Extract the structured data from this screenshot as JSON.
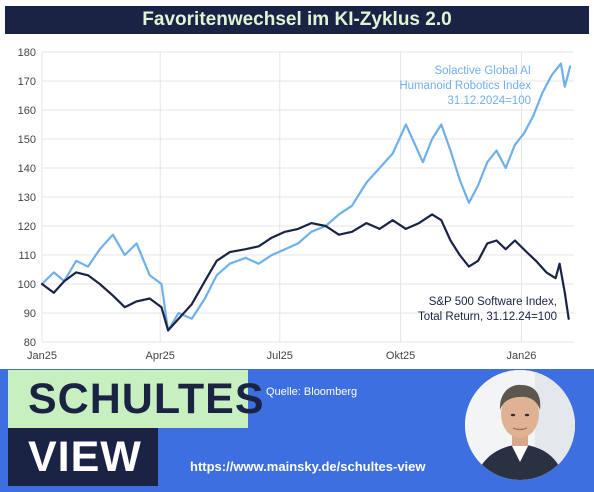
{
  "header": {
    "title": "Favoritenwechsel im KI-Zyklus 2.0"
  },
  "footer": {
    "logo_top": "SCHULTES",
    "logo_bottom": "VIEW",
    "source": "Quelle: Bloomberg",
    "url": "https://www.mainsky.de/schultes-view"
  },
  "colors": {
    "dark": "#1a2344",
    "light": "#6fb0ea",
    "accent": "#c8efc0",
    "footer_blue": "#3d6fe0"
  },
  "chart_data": {
    "type": "line",
    "title": "Favoritenwechsel im KI-Zyklus 2.0",
    "ylim": [
      80,
      180
    ],
    "yticks": [
      80,
      90,
      100,
      110,
      120,
      130,
      140,
      150,
      160,
      170,
      180
    ],
    "xticks": [
      {
        "date": "2025-01-01",
        "label": "Jan25"
      },
      {
        "date": "2025-04-01",
        "label": "Apr25"
      },
      {
        "date": "2025-07-01",
        "label": "Jul25"
      },
      {
        "date": "2025-10-01",
        "label": "Okt25"
      },
      {
        "date": "2026-01-01",
        "label": "Jan26"
      }
    ],
    "xlim": [
      "2025-01-01",
      "2026-02-10"
    ],
    "grid": true,
    "series": [
      {
        "name": "Solactive Global AI Humanoid Robotics Index 31.12.2024=100",
        "label_lines": [
          "Solactive Global AI",
          "Humanoid Robotics Index",
          "31.12.2024=100"
        ],
        "color": "#6fb0ea",
        "points": [
          [
            "2025-01-01",
            100
          ],
          [
            "2025-01-10",
            104
          ],
          [
            "2025-01-18",
            101
          ],
          [
            "2025-01-27",
            108
          ],
          [
            "2025-02-05",
            106
          ],
          [
            "2025-02-14",
            112
          ],
          [
            "2025-02-24",
            117
          ],
          [
            "2025-03-05",
            110
          ],
          [
            "2025-03-14",
            114
          ],
          [
            "2025-03-24",
            103
          ],
          [
            "2025-04-02",
            100
          ],
          [
            "2025-04-07",
            84
          ],
          [
            "2025-04-15",
            90
          ],
          [
            "2025-04-25",
            88
          ],
          [
            "2025-05-05",
            95
          ],
          [
            "2025-05-14",
            103
          ],
          [
            "2025-05-24",
            107
          ],
          [
            "2025-06-05",
            109
          ],
          [
            "2025-06-15",
            107
          ],
          [
            "2025-06-25",
            110
          ],
          [
            "2025-07-05",
            112
          ],
          [
            "2025-07-15",
            114
          ],
          [
            "2025-07-25",
            118
          ],
          [
            "2025-08-05",
            120
          ],
          [
            "2025-08-15",
            124
          ],
          [
            "2025-08-25",
            127
          ],
          [
            "2025-09-05",
            135
          ],
          [
            "2025-09-15",
            140
          ],
          [
            "2025-09-25",
            145
          ],
          [
            "2025-10-05",
            155
          ],
          [
            "2025-10-12",
            148
          ],
          [
            "2025-10-18",
            142
          ],
          [
            "2025-10-25",
            150
          ],
          [
            "2025-11-01",
            155
          ],
          [
            "2025-11-08",
            146
          ],
          [
            "2025-11-15",
            136
          ],
          [
            "2025-11-22",
            128
          ],
          [
            "2025-11-29",
            134
          ],
          [
            "2025-12-06",
            142
          ],
          [
            "2025-12-13",
            146
          ],
          [
            "2025-12-20",
            140
          ],
          [
            "2025-12-27",
            148
          ],
          [
            "2026-01-03",
            152
          ],
          [
            "2026-01-10",
            158
          ],
          [
            "2026-01-17",
            166
          ],
          [
            "2026-01-24",
            172
          ],
          [
            "2026-01-31",
            176
          ],
          [
            "2026-02-03",
            168
          ],
          [
            "2026-02-07",
            175
          ]
        ]
      },
      {
        "name": "S&P 500 Software Index, Total Return, 31.12.24=100",
        "label_lines": [
          "S&P 500 Software Index,",
          "Total Return, 31.12.24=100"
        ],
        "color": "#1a2344",
        "points": [
          [
            "2025-01-01",
            100
          ],
          [
            "2025-01-10",
            97
          ],
          [
            "2025-01-18",
            101
          ],
          [
            "2025-01-27",
            104
          ],
          [
            "2025-02-05",
            103
          ],
          [
            "2025-02-14",
            100
          ],
          [
            "2025-02-24",
            96
          ],
          [
            "2025-03-05",
            92
          ],
          [
            "2025-03-14",
            94
          ],
          [
            "2025-03-24",
            95
          ],
          [
            "2025-04-02",
            92
          ],
          [
            "2025-04-07",
            84
          ],
          [
            "2025-04-15",
            88
          ],
          [
            "2025-04-25",
            93
          ],
          [
            "2025-05-05",
            101
          ],
          [
            "2025-05-14",
            108
          ],
          [
            "2025-05-24",
            111
          ],
          [
            "2025-06-05",
            112
          ],
          [
            "2025-06-15",
            113
          ],
          [
            "2025-06-25",
            116
          ],
          [
            "2025-07-05",
            118
          ],
          [
            "2025-07-15",
            119
          ],
          [
            "2025-07-25",
            121
          ],
          [
            "2025-08-05",
            120
          ],
          [
            "2025-08-15",
            117
          ],
          [
            "2025-08-25",
            118
          ],
          [
            "2025-09-05",
            121
          ],
          [
            "2025-09-15",
            119
          ],
          [
            "2025-09-25",
            122
          ],
          [
            "2025-10-05",
            119
          ],
          [
            "2025-10-15",
            121
          ],
          [
            "2025-10-25",
            124
          ],
          [
            "2025-11-01",
            122
          ],
          [
            "2025-11-08",
            115
          ],
          [
            "2025-11-15",
            110
          ],
          [
            "2025-11-22",
            106
          ],
          [
            "2025-11-29",
            108
          ],
          [
            "2025-12-06",
            114
          ],
          [
            "2025-12-13",
            115
          ],
          [
            "2025-12-20",
            112
          ],
          [
            "2025-12-27",
            115
          ],
          [
            "2026-01-05",
            111
          ],
          [
            "2026-01-12",
            108
          ],
          [
            "2026-01-20",
            104
          ],
          [
            "2026-01-27",
            102
          ],
          [
            "2026-01-30",
            107
          ],
          [
            "2026-02-03",
            97
          ],
          [
            "2026-02-06",
            88
          ]
        ]
      }
    ]
  }
}
